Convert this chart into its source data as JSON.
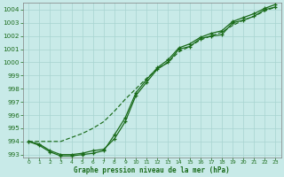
{
  "xlabel": "Graphe pression niveau de la mer (hPa)",
  "bg_color": "#c8eae8",
  "grid_color": "#a8d4d0",
  "line_color": "#1a6b1a",
  "x_values": [
    0,
    1,
    2,
    3,
    4,
    5,
    6,
    7,
    8,
    9,
    10,
    11,
    12,
    13,
    14,
    15,
    16,
    17,
    18,
    19,
    20,
    21,
    22,
    23
  ],
  "line1": [
    994.0,
    993.8,
    993.3,
    993.0,
    993.0,
    993.1,
    993.3,
    993.4,
    994.2,
    995.5,
    997.5,
    998.5,
    999.5,
    1000.0,
    1001.0,
    1001.2,
    1001.8,
    1002.0,
    1002.1,
    1003.0,
    1003.2,
    1003.5,
    1004.0,
    1004.2
  ],
  "line2": [
    994.0,
    994.0,
    994.0,
    994.0,
    994.3,
    994.6,
    995.0,
    995.5,
    996.3,
    997.2,
    998.0,
    998.8,
    999.5,
    1000.0,
    1000.8,
    1001.2,
    1001.7,
    1002.0,
    1002.3,
    1002.8,
    1003.2,
    1003.5,
    1003.9,
    1004.2
  ],
  "line3": [
    994.0,
    993.7,
    993.2,
    992.9,
    992.9,
    993.0,
    993.1,
    993.3,
    994.5,
    995.8,
    997.7,
    998.7,
    999.6,
    1000.2,
    1001.1,
    1001.4,
    1001.9,
    1002.2,
    1002.4,
    1003.1,
    1003.4,
    1003.7,
    1004.1,
    1004.4
  ],
  "ylim_min": 992.8,
  "ylim_max": 1004.5,
  "yticks": [
    993,
    994,
    995,
    996,
    997,
    998,
    999,
    1000,
    1001,
    1002,
    1003,
    1004
  ],
  "xlim_min": -0.5,
  "xlim_max": 23.5
}
